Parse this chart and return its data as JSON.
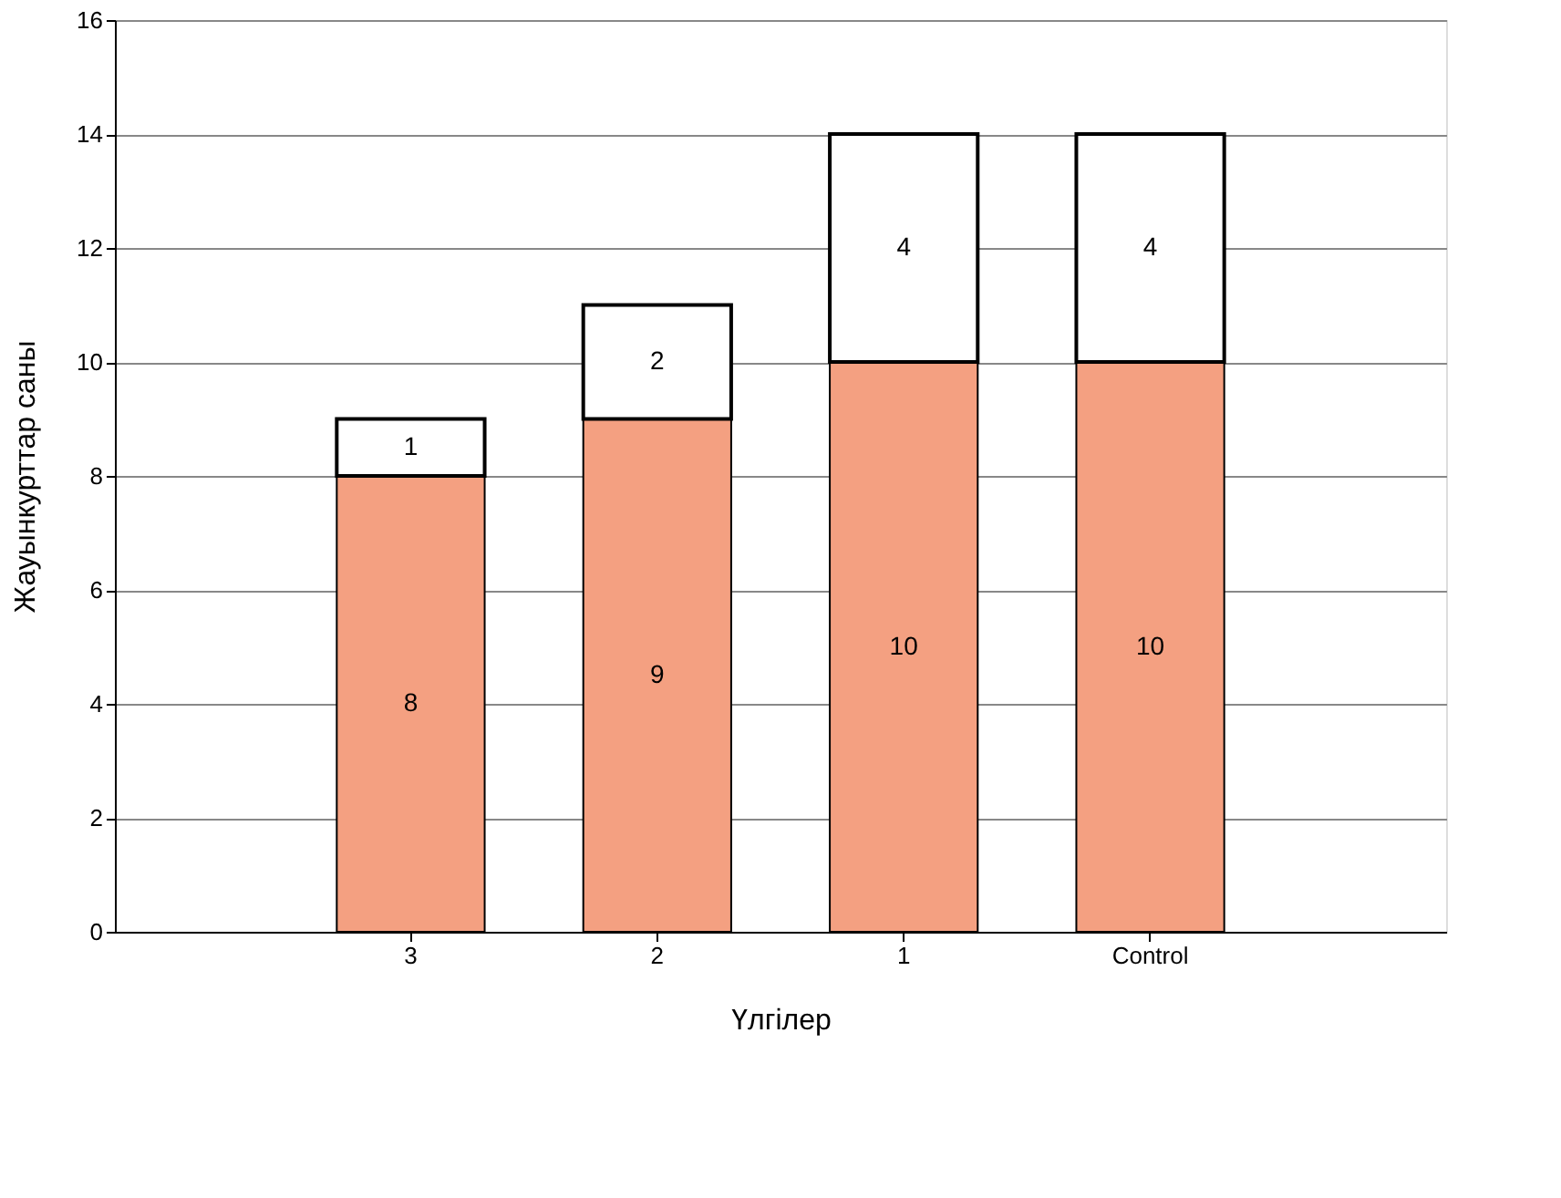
{
  "chart_data": {
    "type": "bar",
    "stacked": true,
    "xlabel": "Үлгілер",
    "ylabel": "Жауынкурттар саны",
    "categories": [
      "3",
      "2",
      "1",
      "Control"
    ],
    "series": [
      {
        "color": "#f4a081",
        "values": [
          8,
          9,
          10,
          10
        ]
      },
      {
        "color": "#ffffff",
        "values": [
          1,
          2,
          4,
          4
        ]
      }
    ],
    "ylim": [
      0,
      16
    ],
    "yticks": [
      0,
      2,
      4,
      6,
      8,
      10,
      12,
      14,
      16
    ],
    "grid": "y",
    "legend": false,
    "data_labels": true
  }
}
